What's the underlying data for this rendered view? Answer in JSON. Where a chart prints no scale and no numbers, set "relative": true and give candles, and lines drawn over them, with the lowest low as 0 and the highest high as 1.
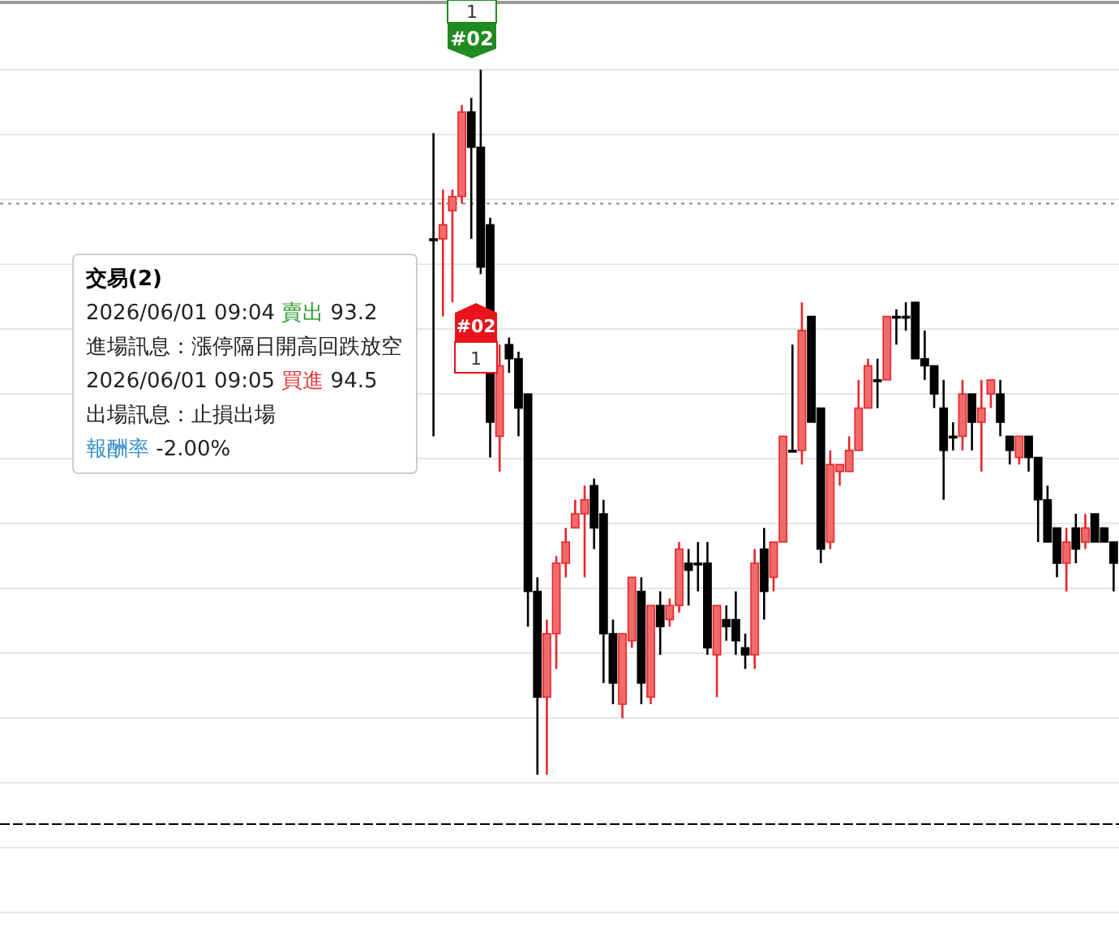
{
  "chart_data": {
    "type": "candlestick",
    "relative": true,
    "grid": true,
    "categories": [
      null,
      null,
      null,
      null,
      null,
      null,
      null,
      null,
      null,
      null,
      null,
      null,
      null,
      null,
      null,
      null,
      null,
      null,
      null,
      null,
      null,
      null,
      null,
      null,
      null,
      null,
      null,
      null,
      null,
      null,
      null,
      null,
      null,
      null,
      null,
      null,
      null,
      null,
      null,
      null,
      null,
      null,
      null,
      null,
      null,
      null,
      null,
      null,
      null,
      null,
      null,
      null,
      null,
      null,
      null,
      null,
      null,
      null,
      null,
      null,
      null,
      null,
      null,
      null,
      null,
      null,
      null,
      null,
      null,
      null,
      null,
      null,
      null
    ],
    "ohlc": [
      [
        0.76,
        0.91,
        0.48,
        0.76
      ],
      [
        0.76,
        0.83,
        0.65,
        0.78
      ],
      [
        0.8,
        0.83,
        0.67,
        0.82
      ],
      [
        0.82,
        0.95,
        0.81,
        0.94
      ],
      [
        0.94,
        0.96,
        0.76,
        0.89
      ],
      [
        0.89,
        1.0,
        0.71,
        0.72
      ],
      [
        0.78,
        0.79,
        0.45,
        0.5
      ],
      [
        0.48,
        0.61,
        0.43,
        0.58
      ],
      [
        0.61,
        0.62,
        0.57,
        0.59
      ],
      [
        0.59,
        0.6,
        0.48,
        0.52
      ],
      [
        0.54,
        0.54,
        0.21,
        0.26
      ],
      [
        0.26,
        0.28,
        0.0,
        0.11
      ],
      [
        0.11,
        0.22,
        0.0,
        0.2
      ],
      [
        0.2,
        0.31,
        0.15,
        0.3
      ],
      [
        0.3,
        0.35,
        0.28,
        0.33
      ],
      [
        0.35,
        0.39,
        0.35,
        0.37
      ],
      [
        0.37,
        0.41,
        0.28,
        0.39
      ],
      [
        0.41,
        0.42,
        0.32,
        0.35
      ],
      [
        0.37,
        0.39,
        0.13,
        0.2
      ],
      [
        0.2,
        0.22,
        0.1,
        0.13
      ],
      [
        0.1,
        0.2,
        0.08,
        0.2
      ],
      [
        0.19,
        0.28,
        0.18,
        0.28
      ],
      [
        0.26,
        0.28,
        0.1,
        0.13
      ],
      [
        0.11,
        0.24,
        0.1,
        0.24
      ],
      [
        0.24,
        0.26,
        0.17,
        0.21
      ],
      [
        0.22,
        0.25,
        0.21,
        0.24
      ],
      [
        0.24,
        0.33,
        0.23,
        0.32
      ],
      [
        0.3,
        0.32,
        0.24,
        0.29
      ],
      [
        0.3,
        0.33,
        0.26,
        0.3
      ],
      [
        0.3,
        0.33,
        0.17,
        0.18
      ],
      [
        0.17,
        0.24,
        0.11,
        0.24
      ],
      [
        0.22,
        0.24,
        0.19,
        0.21
      ],
      [
        0.22,
        0.26,
        0.17,
        0.19
      ],
      [
        0.18,
        0.2,
        0.15,
        0.17
      ],
      [
        0.17,
        0.32,
        0.15,
        0.3
      ],
      [
        0.32,
        0.35,
        0.22,
        0.26
      ],
      [
        0.28,
        0.33,
        0.26,
        0.33
      ],
      [
        0.33,
        0.48,
        0.33,
        0.48
      ],
      [
        0.46,
        0.61,
        0.46,
        0.46
      ],
      [
        0.46,
        0.67,
        0.44,
        0.63
      ],
      [
        0.65,
        0.65,
        0.5,
        0.5
      ],
      [
        0.52,
        0.52,
        0.3,
        0.32
      ],
      [
        0.33,
        0.46,
        0.32,
        0.44
      ],
      [
        0.43,
        0.44,
        0.41,
        0.44
      ],
      [
        0.43,
        0.48,
        0.43,
        0.46
      ],
      [
        0.46,
        0.56,
        0.46,
        0.52
      ],
      [
        0.52,
        0.59,
        0.52,
        0.58
      ],
      [
        0.56,
        0.59,
        0.52,
        0.56
      ],
      [
        0.56,
        0.65,
        0.56,
        0.65
      ],
      [
        0.65,
        0.66,
        0.61,
        0.65
      ],
      [
        0.65,
        0.67,
        0.63,
        0.65
      ],
      [
        0.67,
        0.67,
        0.59,
        0.59
      ],
      [
        0.59,
        0.63,
        0.56,
        0.58
      ],
      [
        0.58,
        0.58,
        0.52,
        0.54
      ],
      [
        0.52,
        0.56,
        0.39,
        0.46
      ],
      [
        0.48,
        0.5,
        0.46,
        0.48
      ],
      [
        0.48,
        0.56,
        0.46,
        0.54
      ],
      [
        0.54,
        0.54,
        0.46,
        0.5
      ],
      [
        0.5,
        0.56,
        0.43,
        0.52
      ],
      [
        0.54,
        0.56,
        0.52,
        0.56
      ],
      [
        0.54,
        0.56,
        0.48,
        0.5
      ],
      [
        0.48,
        0.48,
        0.44,
        0.46
      ],
      [
        0.45,
        0.48,
        0.44,
        0.48
      ],
      [
        0.48,
        0.48,
        0.43,
        0.45
      ],
      [
        0.45,
        0.45,
        0.33,
        0.39
      ],
      [
        0.39,
        0.41,
        0.33,
        0.33
      ],
      [
        0.35,
        0.35,
        0.28,
        0.3
      ],
      [
        0.3,
        0.35,
        0.26,
        0.33
      ],
      [
        0.35,
        0.37,
        0.3,
        0.32
      ],
      [
        0.33,
        0.37,
        0.32,
        0.35
      ],
      [
        0.37,
        0.37,
        0.33,
        0.33
      ],
      [
        0.35,
        0.35,
        0.33,
        0.33
      ],
      [
        0.33,
        0.33,
        0.26,
        0.3
      ]
    ],
    "ref_lines": [
      {
        "axis": "y",
        "value": 0.81,
        "line_style": "dotted",
        "color": "#888888"
      },
      {
        "axis": "y",
        "value": -0.07,
        "line_style": "dashed",
        "color": "#000000"
      }
    ],
    "annotations": [
      "交易(2)",
      "2026/06/01 09:04",
      "賣出",
      "93.2",
      "進場訊息：漲停隔日開高回跌放空",
      "2026/06/01 09:05",
      "買進",
      "94.5",
      "出場訊息：止損出場",
      "報酬率",
      "-2.00%",
      "1",
      "#02",
      "#02",
      "1"
    ]
  }
}
